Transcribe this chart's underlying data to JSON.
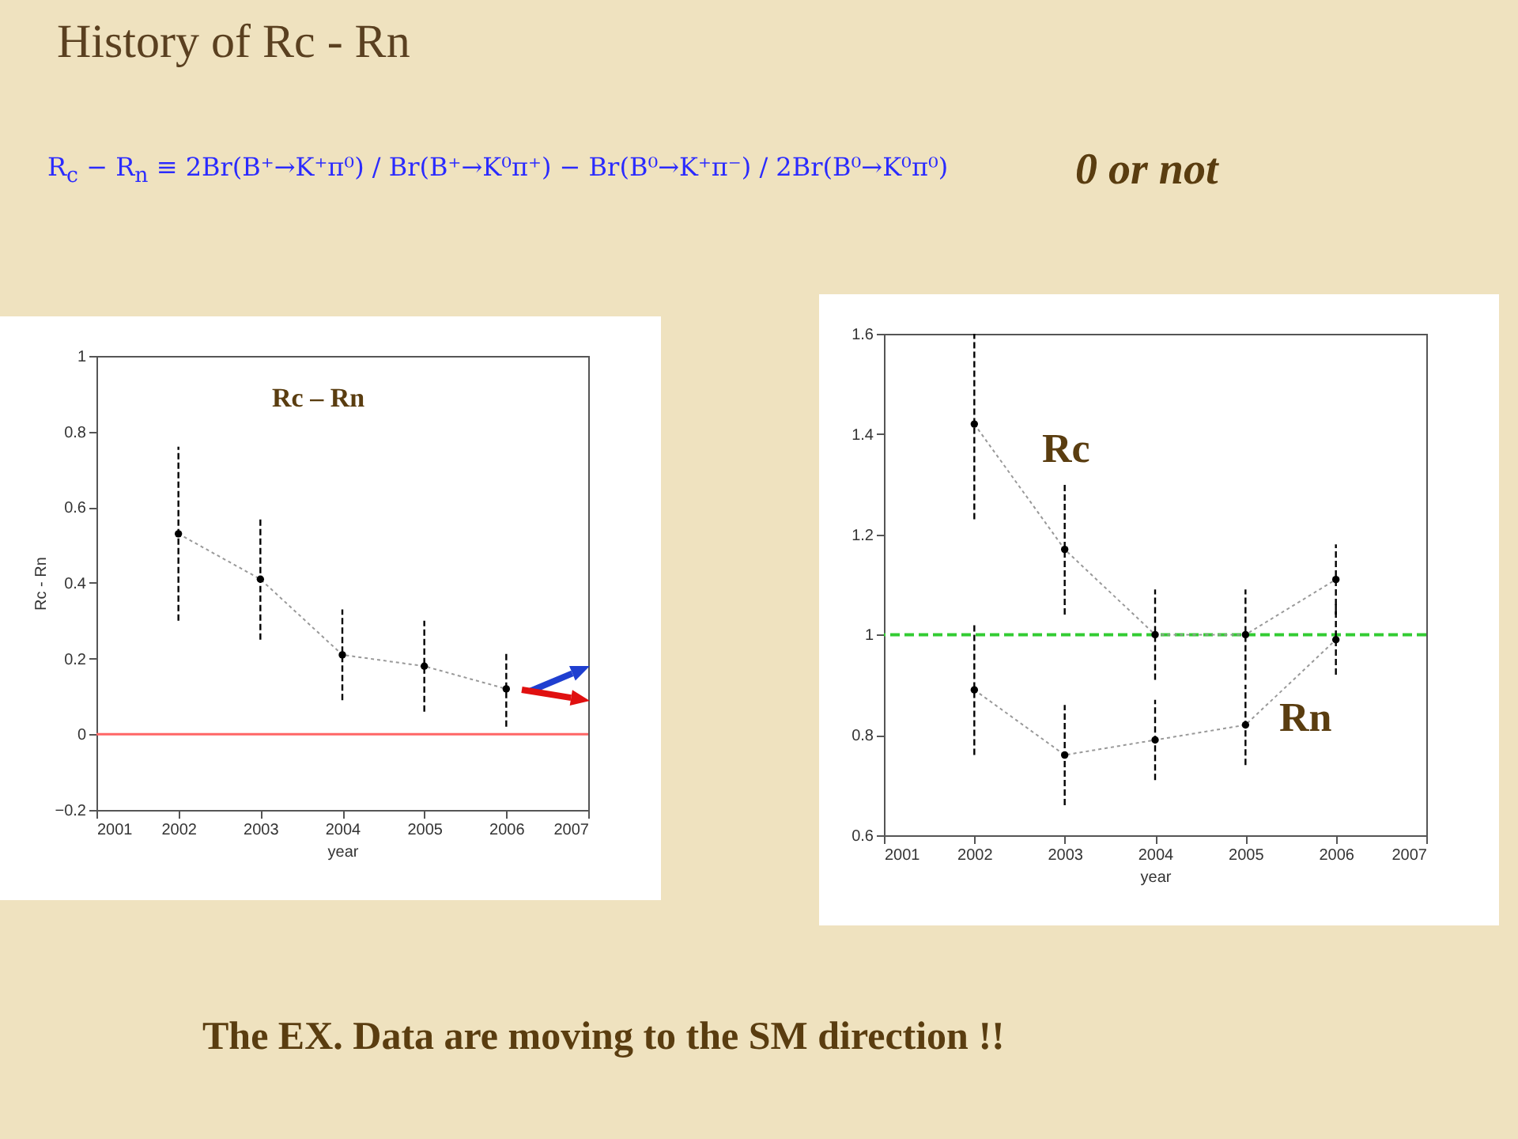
{
  "chart_data": [
    {
      "type": "line",
      "title": "History of Rc - Rn",
      "xlabel": "year",
      "ylabel": "Rc - Rn",
      "annotations": [
        "R$_{c}$ − R$_{n}$ ≡ 2Br(B⁺→K⁺π⁰) / Br(B⁺→K⁰π⁺) − Br(B⁰→K⁺π⁻) / 2Br(B⁰→K⁰π⁰)",
        "0  or  not",
        "Rc – Rn",
        "The EX. Data are moving to the SM direction !!"
      ],
      "x": [
        2002,
        2003,
        2004,
        2005,
        2006
      ],
      "series": [
        {
          "color": "#000000",
          "values": [
            0.53,
            0.41,
            0.21,
            0.18,
            0.12
          ],
          "errors": [
            [
              0.3,
              0.76
            ],
            [
              0.25,
              0.57
            ],
            [
              0.09,
              0.33
            ],
            [
              0.06,
              0.3
            ],
            [
              0.02,
              0.22
            ]
          ]
        }
      ],
      "xlim": [
        2001,
        2007
      ],
      "xticks": [
        2001,
        2002,
        2003,
        2004,
        2005,
        2006,
        2007
      ],
      "ylim": [
        -0.2,
        1
      ],
      "yticks": [
        -0.2,
        0,
        0.2,
        0.4,
        0.6,
        0.8,
        1
      ],
      "marker": "circle",
      "line_style": "dotted",
      "grid": false,
      "ref_lines": [
        {
          "axis": "y",
          "value": 0,
          "color": "#ff6666",
          "line_style": "solid"
        }
      ]
    },
    {
      "type": "line",
      "xlabel": "year",
      "x": [
        2002,
        2003,
        2004,
        2005,
        2006
      ],
      "series": [
        {
          "name": "Rc",
          "color": "#000000",
          "values": [
            1.42,
            1.17,
            1.0,
            1.0,
            1.11
          ],
          "errors": [
            [
              1.23,
              1.6
            ],
            [
              1.04,
              1.3
            ],
            [
              0.91,
              1.09
            ],
            [
              0.91,
              1.09
            ],
            [
              1.04,
              1.18
            ]
          ]
        },
        {
          "name": "Rn",
          "color": "#000000",
          "values": [
            0.89,
            0.76,
            0.79,
            0.82,
            0.99
          ],
          "errors": [
            [
              0.76,
              1.02
            ],
            [
              0.66,
              0.86
            ],
            [
              0.71,
              0.87
            ],
            [
              0.74,
              0.9
            ],
            [
              0.92,
              1.06
            ]
          ]
        }
      ],
      "xlim": [
        2001,
        2007
      ],
      "xticks": [
        2001,
        2002,
        2003,
        2004,
        2005,
        2006,
        2007
      ],
      "ylim": [
        0.6,
        1.6
      ],
      "yticks": [
        0.6,
        0.8,
        1,
        1.2,
        1.4,
        1.6
      ],
      "marker": "circle",
      "line_style": "dotted",
      "grid": false,
      "ref_lines": [
        {
          "axis": "y",
          "value": 1,
          "color": "#33cc33",
          "line_style": "dashed"
        }
      ]
    }
  ]
}
